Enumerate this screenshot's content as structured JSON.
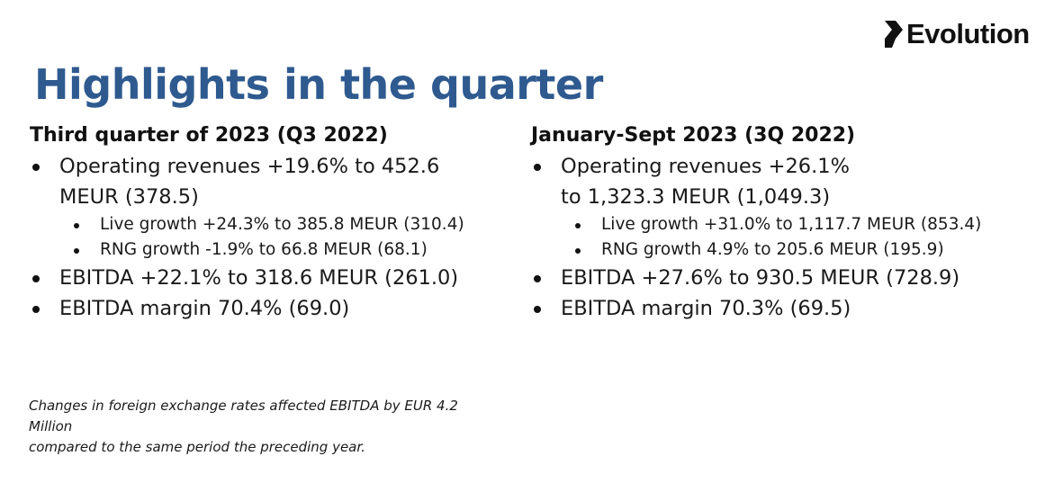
{
  "brand": {
    "name": "Evolution",
    "logo_icon": "evolution-chevron-icon"
  },
  "title": "Highlights in the quarter",
  "left": {
    "heading": "Third quarter of 2023 (Q3 2022)",
    "rev_line1": "Operating revenues +19.6% to 452.6",
    "rev_line2": "MEUR (378.5)",
    "sub1": "Live growth +24.3% to 385.8 MEUR (310.4)",
    "sub2": "RNG growth -1.9% to 66.8 MEUR (68.1)",
    "ebitda": "EBITDA +22.1% to 318.6 MEUR (261.0)",
    "margin": "EBITDA margin 70.4% (69.0)"
  },
  "right": {
    "heading": "January-Sept 2023 (3Q 2022)",
    "rev_line1": "Operating revenues +26.1%",
    "rev_line2": "to 1,323.3 MEUR (1,049.3)",
    "sub1": "Live growth +31.0% to 1,117.7 MEUR (853.4)",
    "sub2": "RNG growth 4.9% to 205.6 MEUR (195.9)",
    "ebitda": "EBITDA +27.6% to 930.5 MEUR (728.9)",
    "margin": "EBITDA margin 70.3% (69.5)"
  },
  "footnote": {
    "line1": "Changes in foreign exchange rates affected EBITDA by EUR 4.2",
    "line2": "Million",
    "line3": "compared to the same period the preceding year."
  },
  "colors": {
    "title": "#2e5a8f",
    "text": "#1a1a1a"
  }
}
